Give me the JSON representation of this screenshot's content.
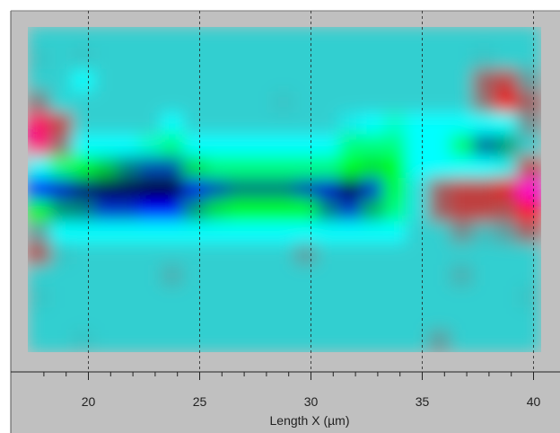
{
  "chart_data": {
    "type": "heatmap",
    "title": "",
    "xlabel": "Length X (µm)",
    "ylabel": "",
    "xlim": [
      17.3,
      40.6
    ],
    "x_ticks": [
      20,
      25,
      30,
      35,
      40
    ],
    "grid": "vertical dashed lines at major ticks",
    "colormap": [
      "#000000",
      "#0000ff",
      "#00ff00",
      "#00ffff",
      "#5f9ea0",
      "#ff0000",
      "#ff00ff"
    ],
    "x_centers": [
      17.8,
      18.8,
      19.8,
      20.8,
      21.8,
      22.8,
      23.8,
      24.8,
      25.8,
      26.8,
      27.8,
      28.8,
      29.8,
      30.8,
      31.8,
      32.8,
      33.8,
      34.8,
      35.8,
      36.8,
      37.8,
      38.8,
      39.8
    ],
    "rows": 15,
    "values": [
      [
        3.5,
        3.5,
        3.5,
        3.5,
        3.5,
        3.5,
        3.5,
        3.5,
        3.5,
        3.5,
        3.5,
        3.5,
        3.5,
        3.5,
        3.5,
        3.5,
        3.5,
        3.5,
        3.5,
        3.5,
        3.5,
        3.5,
        3.5
      ],
      [
        3.6,
        3.5,
        3.6,
        3.5,
        3.5,
        3.5,
        3.5,
        3.5,
        3.5,
        3.5,
        3.5,
        3.5,
        3.5,
        3.5,
        3.5,
        3.5,
        3.5,
        3.5,
        3.5,
        3.5,
        3.6,
        3.5,
        3.5
      ],
      [
        3.5,
        3.5,
        3.0,
        3.5,
        3.5,
        3.5,
        3.5,
        3.5,
        3.5,
        3.5,
        3.5,
        3.5,
        3.5,
        3.5,
        3.5,
        3.5,
        3.5,
        3.5,
        3.5,
        3.5,
        4.4,
        4.6,
        4.0
      ],
      [
        4.2,
        3.4,
        3.5,
        3.5,
        3.5,
        3.5,
        3.5,
        3.5,
        3.5,
        3.5,
        3.5,
        3.6,
        3.5,
        3.5,
        3.5,
        3.5,
        3.5,
        3.5,
        3.5,
        3.5,
        4.3,
        4.9,
        4.4
      ],
      [
        5.4,
        4.6,
        3.5,
        3.5,
        3.5,
        3.5,
        3.0,
        3.5,
        3.5,
        3.5,
        3.5,
        3.5,
        3.5,
        3.5,
        3.2,
        3.0,
        2.8,
        3.0,
        3.0,
        3.0,
        3.0,
        3.0,
        4.1
      ],
      [
        5.5,
        4.3,
        3.0,
        3.0,
        3.0,
        2.8,
        2.5,
        3.0,
        3.0,
        3.0,
        3.0,
        3.0,
        3.0,
        3.0,
        2.5,
        2.5,
        2.5,
        3.0,
        3.0,
        2.4,
        1.4,
        1.6,
        3.5
      ],
      [
        3.0,
        2.5,
        2.0,
        1.8,
        1.5,
        1.3,
        1.3,
        1.9,
        2.5,
        2.5,
        2.5,
        2.5,
        2.5,
        2.5,
        2.0,
        1.9,
        2.0,
        3.0,
        3.0,
        3.0,
        3.0,
        3.2,
        4.6
      ],
      [
        1.0,
        0.8,
        0.5,
        0.3,
        0.3,
        0.2,
        0.2,
        0.9,
        1.3,
        1.5,
        1.5,
        1.5,
        1.3,
        0.8,
        0.3,
        1.2,
        2.2,
        3.3,
        4.4,
        4.6,
        4.6,
        4.8,
        5.8
      ],
      [
        2.0,
        1.6,
        1.5,
        1.2,
        1.2,
        1.0,
        1.0,
        1.6,
        1.9,
        2.0,
        2.0,
        2.0,
        2.0,
        1.5,
        1.2,
        1.7,
        2.5,
        3.3,
        4.4,
        4.6,
        4.6,
        4.5,
        5.2
      ],
      [
        4.0,
        3.0,
        3.0,
        3.0,
        3.0,
        3.0,
        3.0,
        3.0,
        3.0,
        3.0,
        3.0,
        3.0,
        3.0,
        3.0,
        3.0,
        3.0,
        3.0,
        3.5,
        3.5,
        4.1,
        3.7,
        4.0,
        4.4
      ],
      [
        4.5,
        3.6,
        3.5,
        3.5,
        3.5,
        3.5,
        3.5,
        3.5,
        3.5,
        3.5,
        3.5,
        3.5,
        4.0,
        3.5,
        3.5,
        3.5,
        3.5,
        3.5,
        3.5,
        3.5,
        3.5,
        3.5,
        3.5
      ],
      [
        3.5,
        3.5,
        3.5,
        3.5,
        3.5,
        3.5,
        3.8,
        3.5,
        3.5,
        3.5,
        3.5,
        3.5,
        3.5,
        3.5,
        3.5,
        3.5,
        3.5,
        3.5,
        3.5,
        3.8,
        3.5,
        3.5,
        3.5
      ],
      [
        3.6,
        3.5,
        3.5,
        3.5,
        3.5,
        3.5,
        3.5,
        3.5,
        3.5,
        3.5,
        3.5,
        3.5,
        3.5,
        3.5,
        3.5,
        3.5,
        3.5,
        3.5,
        3.5,
        3.5,
        3.5,
        3.5,
        3.6
      ],
      [
        3.5,
        3.5,
        3.5,
        3.5,
        3.5,
        3.5,
        3.5,
        3.5,
        3.5,
        3.5,
        3.5,
        3.5,
        3.5,
        3.5,
        3.5,
        3.5,
        3.5,
        3.5,
        3.5,
        3.5,
        3.5,
        3.5,
        3.5
      ],
      [
        3.5,
        3.5,
        3.6,
        3.5,
        3.5,
        3.5,
        3.5,
        3.5,
        3.5,
        3.5,
        3.5,
        3.5,
        3.5,
        3.5,
        3.5,
        3.5,
        3.5,
        3.5,
        4.0,
        3.5,
        3.5,
        3.5,
        3.5
      ]
    ]
  }
}
